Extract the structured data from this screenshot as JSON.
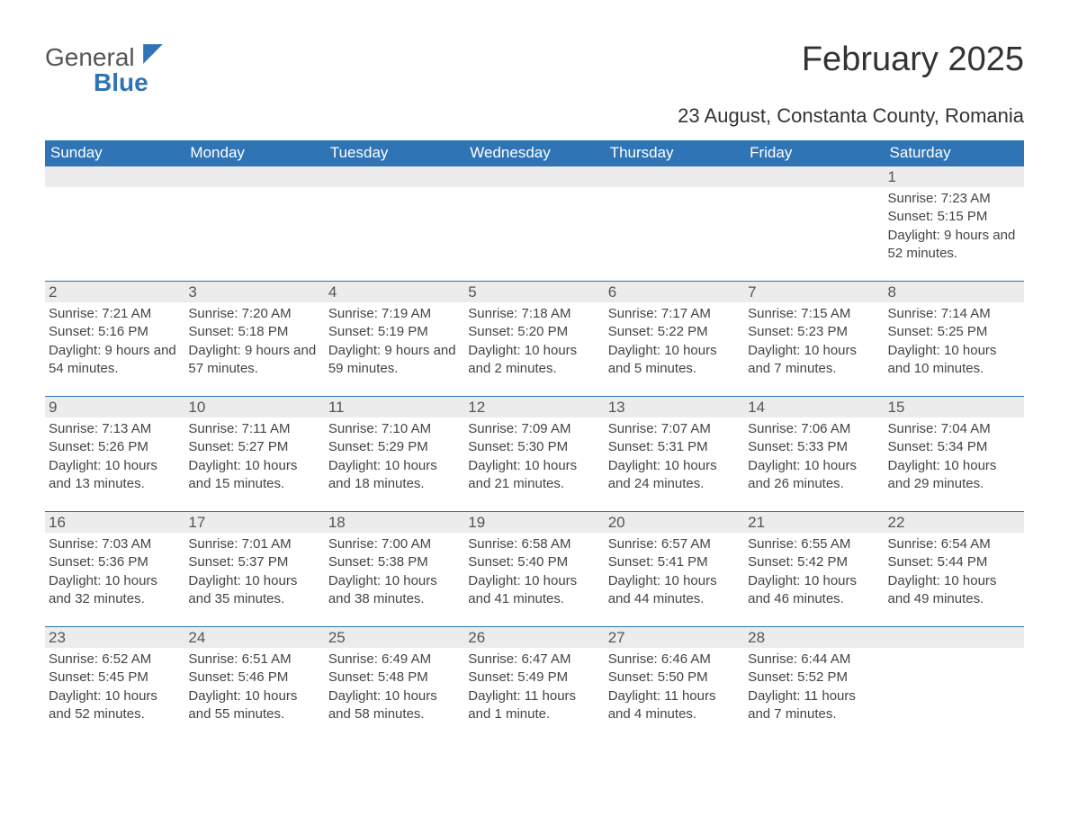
{
  "brand": {
    "word1": "General",
    "word2": "Blue",
    "accent_color": "#2f74b5"
  },
  "title": "February 2025",
  "subtitle": "23 August, Constanta County, Romania",
  "colors": {
    "header_bg": "#2f74b5",
    "header_text": "#ffffff",
    "daynum_bg": "#ececec",
    "page_bg": "#ffffff",
    "body_text": "#444444"
  },
  "columns": [
    "Sunday",
    "Monday",
    "Tuesday",
    "Wednesday",
    "Thursday",
    "Friday",
    "Saturday"
  ],
  "grid": [
    [
      null,
      null,
      null,
      null,
      null,
      null,
      {
        "n": "1",
        "sr": "Sunrise: 7:23 AM",
        "ss": "Sunset: 5:15 PM",
        "dl": "Daylight: 9 hours and 52 minutes."
      }
    ],
    [
      {
        "n": "2",
        "sr": "Sunrise: 7:21 AM",
        "ss": "Sunset: 5:16 PM",
        "dl": "Daylight: 9 hours and 54 minutes."
      },
      {
        "n": "3",
        "sr": "Sunrise: 7:20 AM",
        "ss": "Sunset: 5:18 PM",
        "dl": "Daylight: 9 hours and 57 minutes."
      },
      {
        "n": "4",
        "sr": "Sunrise: 7:19 AM",
        "ss": "Sunset: 5:19 PM",
        "dl": "Daylight: 9 hours and 59 minutes."
      },
      {
        "n": "5",
        "sr": "Sunrise: 7:18 AM",
        "ss": "Sunset: 5:20 PM",
        "dl": "Daylight: 10 hours and 2 minutes."
      },
      {
        "n": "6",
        "sr": "Sunrise: 7:17 AM",
        "ss": "Sunset: 5:22 PM",
        "dl": "Daylight: 10 hours and 5 minutes."
      },
      {
        "n": "7",
        "sr": "Sunrise: 7:15 AM",
        "ss": "Sunset: 5:23 PM",
        "dl": "Daylight: 10 hours and 7 minutes."
      },
      {
        "n": "8",
        "sr": "Sunrise: 7:14 AM",
        "ss": "Sunset: 5:25 PM",
        "dl": "Daylight: 10 hours and 10 minutes."
      }
    ],
    [
      {
        "n": "9",
        "sr": "Sunrise: 7:13 AM",
        "ss": "Sunset: 5:26 PM",
        "dl": "Daylight: 10 hours and 13 minutes."
      },
      {
        "n": "10",
        "sr": "Sunrise: 7:11 AM",
        "ss": "Sunset: 5:27 PM",
        "dl": "Daylight: 10 hours and 15 minutes."
      },
      {
        "n": "11",
        "sr": "Sunrise: 7:10 AM",
        "ss": "Sunset: 5:29 PM",
        "dl": "Daylight: 10 hours and 18 minutes."
      },
      {
        "n": "12",
        "sr": "Sunrise: 7:09 AM",
        "ss": "Sunset: 5:30 PM",
        "dl": "Daylight: 10 hours and 21 minutes."
      },
      {
        "n": "13",
        "sr": "Sunrise: 7:07 AM",
        "ss": "Sunset: 5:31 PM",
        "dl": "Daylight: 10 hours and 24 minutes."
      },
      {
        "n": "14",
        "sr": "Sunrise: 7:06 AM",
        "ss": "Sunset: 5:33 PM",
        "dl": "Daylight: 10 hours and 26 minutes."
      },
      {
        "n": "15",
        "sr": "Sunrise: 7:04 AM",
        "ss": "Sunset: 5:34 PM",
        "dl": "Daylight: 10 hours and 29 minutes."
      }
    ],
    [
      {
        "n": "16",
        "sr": "Sunrise: 7:03 AM",
        "ss": "Sunset: 5:36 PM",
        "dl": "Daylight: 10 hours and 32 minutes."
      },
      {
        "n": "17",
        "sr": "Sunrise: 7:01 AM",
        "ss": "Sunset: 5:37 PM",
        "dl": "Daylight: 10 hours and 35 minutes."
      },
      {
        "n": "18",
        "sr": "Sunrise: 7:00 AM",
        "ss": "Sunset: 5:38 PM",
        "dl": "Daylight: 10 hours and 38 minutes."
      },
      {
        "n": "19",
        "sr": "Sunrise: 6:58 AM",
        "ss": "Sunset: 5:40 PM",
        "dl": "Daylight: 10 hours and 41 minutes."
      },
      {
        "n": "20",
        "sr": "Sunrise: 6:57 AM",
        "ss": "Sunset: 5:41 PM",
        "dl": "Daylight: 10 hours and 44 minutes."
      },
      {
        "n": "21",
        "sr": "Sunrise: 6:55 AM",
        "ss": "Sunset: 5:42 PM",
        "dl": "Daylight: 10 hours and 46 minutes."
      },
      {
        "n": "22",
        "sr": "Sunrise: 6:54 AM",
        "ss": "Sunset: 5:44 PM",
        "dl": "Daylight: 10 hours and 49 minutes."
      }
    ],
    [
      {
        "n": "23",
        "sr": "Sunrise: 6:52 AM",
        "ss": "Sunset: 5:45 PM",
        "dl": "Daylight: 10 hours and 52 minutes."
      },
      {
        "n": "24",
        "sr": "Sunrise: 6:51 AM",
        "ss": "Sunset: 5:46 PM",
        "dl": "Daylight: 10 hours and 55 minutes."
      },
      {
        "n": "25",
        "sr": "Sunrise: 6:49 AM",
        "ss": "Sunset: 5:48 PM",
        "dl": "Daylight: 10 hours and 58 minutes."
      },
      {
        "n": "26",
        "sr": "Sunrise: 6:47 AM",
        "ss": "Sunset: 5:49 PM",
        "dl": "Daylight: 11 hours and 1 minute."
      },
      {
        "n": "27",
        "sr": "Sunrise: 6:46 AM",
        "ss": "Sunset: 5:50 PM",
        "dl": "Daylight: 11 hours and 4 minutes."
      },
      {
        "n": "28",
        "sr": "Sunrise: 6:44 AM",
        "ss": "Sunset: 5:52 PM",
        "dl": "Daylight: 11 hours and 7 minutes."
      },
      null
    ]
  ]
}
